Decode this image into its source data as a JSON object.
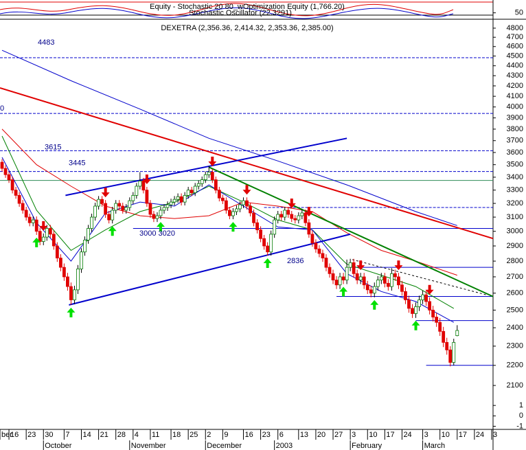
{
  "chart_data": {
    "type": "candlestick",
    "header": [
      "Equity - Stochastic 20 80_wOptimization Equity (1,766.20)",
      "Stochastic Oscillator (22.3291)",
      "DEXETRA (2,356.36, 2,414.32, 2,353.36, 2,385.00)"
    ],
    "log_scale": true,
    "up_color": "#007a00",
    "down_color": "#e00000",
    "xlim": [
      0.4,
      143.4
    ],
    "ylim": [
      2054,
      4900
    ],
    "yticks": [
      4800,
      4700,
      4600,
      4500,
      4400,
      4300,
      4200,
      4100,
      4000,
      3900,
      3800,
      3700,
      3600,
      3500,
      3400,
      3300,
      3200,
      3100,
      3000,
      2900,
      2800,
      2700,
      2600,
      2500,
      2400,
      2300,
      2200,
      2100
    ],
    "xticks": [
      {
        "value": 0.4,
        "label": "ber"
      },
      {
        "value": 3,
        "label": "16"
      },
      {
        "value": 8,
        "label": "23"
      },
      {
        "value": 13,
        "label": "30"
      },
      {
        "value": 19,
        "label": "7"
      },
      {
        "value": 24,
        "label": "14"
      },
      {
        "value": 29,
        "label": "21"
      },
      {
        "value": 34,
        "label": "28"
      },
      {
        "value": 39,
        "label": "4"
      },
      {
        "value": 44,
        "label": "11"
      },
      {
        "value": 50,
        "label": "18"
      },
      {
        "value": 55,
        "label": "25"
      },
      {
        "value": 60,
        "label": "2"
      },
      {
        "value": 65,
        "label": "9"
      },
      {
        "value": 71,
        "label": "16"
      },
      {
        "value": 76,
        "label": "23"
      },
      {
        "value": 81,
        "label": "6"
      },
      {
        "value": 87,
        "label": "13"
      },
      {
        "value": 92,
        "label": "20"
      },
      {
        "value": 97,
        "label": "27"
      },
      {
        "value": 102,
        "label": "3"
      },
      {
        "value": 107,
        "label": "10"
      },
      {
        "value": 112,
        "label": "17"
      },
      {
        "value": 117,
        "label": "24"
      },
      {
        "value": 123,
        "label": "3"
      },
      {
        "value": 128,
        "label": "10"
      },
      {
        "value": 133,
        "label": "17"
      },
      {
        "value": 138,
        "label": "24"
      },
      {
        "value": 143,
        "label": "3"
      }
    ],
    "month_ticks": [
      {
        "value": 13,
        "label": "October"
      },
      {
        "value": 38,
        "label": "November"
      },
      {
        "value": 60,
        "label": "December"
      },
      {
        "value": 80,
        "label": "2003"
      },
      {
        "value": 102,
        "label": "February"
      },
      {
        "value": 123,
        "label": "March"
      }
    ],
    "x": [
      1,
      2,
      3,
      4,
      5,
      6,
      7,
      8,
      9,
      10,
      11,
      12,
      13,
      14,
      15,
      16,
      17,
      18,
      19,
      20,
      21,
      22,
      23,
      24,
      25,
      26,
      27,
      28,
      29,
      30,
      31,
      32,
      33,
      34,
      35,
      36,
      37,
      38,
      39,
      40,
      41,
      42,
      43,
      44,
      45,
      46,
      47,
      48,
      49,
      50,
      51,
      52,
      53,
      54,
      55,
      56,
      57,
      58,
      59,
      60,
      61,
      62,
      63,
      64,
      65,
      66,
      67,
      68,
      69,
      70,
      71,
      72,
      73,
      74,
      75,
      76,
      77,
      78,
      79,
      80,
      81,
      82,
      83,
      84,
      85,
      86,
      87,
      88,
      89,
      90,
      91,
      92,
      93,
      94,
      95,
      96,
      97,
      98,
      99,
      100,
      101,
      102,
      103,
      104,
      105,
      106,
      107,
      108,
      109,
      110,
      111,
      112,
      113,
      114,
      115,
      116,
      117,
      118,
      119,
      120,
      121,
      122,
      123,
      124,
      125,
      126,
      127,
      128,
      129,
      130,
      131,
      132,
      133
    ],
    "ohlc": [
      [
        3520,
        3545,
        3445,
        3470
      ],
      [
        3470,
        3495,
        3395,
        3420
      ],
      [
        3420,
        3445,
        3355,
        3380
      ],
      [
        3380,
        3405,
        3275,
        3300
      ],
      [
        3300,
        3325,
        3235,
        3260
      ],
      [
        3260,
        3285,
        3175,
        3200
      ],
      [
        3200,
        3225,
        3125,
        3150
      ],
      [
        3150,
        3175,
        3075,
        3100
      ],
      [
        3100,
        3125,
        3035,
        3060
      ],
      [
        3060,
        3105,
        3035,
        3080
      ],
      [
        3080,
        3105,
        2975,
        3000
      ],
      [
        3000,
        3025,
        2905,
        2930
      ],
      [
        2930,
        2985,
        2905,
        2960
      ],
      [
        2960,
        3045,
        2935,
        3020
      ],
      [
        3020,
        3045,
        2955,
        2980
      ],
      [
        2980,
        3005,
        2875,
        2900
      ],
      [
        2900,
        2925,
        2795,
        2820
      ],
      [
        2820,
        2845,
        2735,
        2760
      ],
      [
        2760,
        2785,
        2675,
        2700
      ],
      [
        2700,
        2725,
        2615,
        2640
      ],
      [
        2640,
        2665,
        2530,
        2560
      ],
      [
        2560,
        2645,
        2535,
        2620
      ],
      [
        2620,
        2775,
        2595,
        2750
      ],
      [
        2750,
        2885,
        2725,
        2860
      ],
      [
        2860,
        2965,
        2835,
        2940
      ],
      [
        2940,
        3045,
        2915,
        3020
      ],
      [
        3020,
        3125,
        2995,
        3100
      ],
      [
        3100,
        3205,
        3075,
        3180
      ],
      [
        3180,
        3255,
        3155,
        3230
      ],
      [
        3230,
        3255,
        3175,
        3200
      ],
      [
        3200,
        3225,
        3095,
        3120
      ],
      [
        3120,
        3145,
        3055,
        3080
      ],
      [
        3080,
        3175,
        3055,
        3150
      ],
      [
        3150,
        3225,
        3125,
        3200
      ],
      [
        3200,
        3225,
        3155,
        3180
      ],
      [
        3180,
        3205,
        3125,
        3150
      ],
      [
        3150,
        3195,
        3125,
        3170
      ],
      [
        3170,
        3245,
        3145,
        3220
      ],
      [
        3220,
        3285,
        3195,
        3260
      ],
      [
        3260,
        3355,
        3235,
        3330
      ],
      [
        3330,
        3440,
        3305,
        3370
      ],
      [
        3370,
        3395,
        3275,
        3300
      ],
      [
        3300,
        3325,
        3175,
        3200
      ],
      [
        3200,
        3225,
        3095,
        3120
      ],
      [
        3120,
        3145,
        3065,
        3090
      ],
      [
        3090,
        3135,
        3065,
        3110
      ],
      [
        3110,
        3175,
        3085,
        3150
      ],
      [
        3150,
        3195,
        3125,
        3170
      ],
      [
        3170,
        3215,
        3145,
        3190
      ],
      [
        3190,
        3235,
        3165,
        3210
      ],
      [
        3210,
        3255,
        3185,
        3230
      ],
      [
        3230,
        3275,
        3205,
        3250
      ],
      [
        3250,
        3275,
        3185,
        3210
      ],
      [
        3210,
        3285,
        3185,
        3260
      ],
      [
        3260,
        3325,
        3235,
        3300
      ],
      [
        3300,
        3325,
        3255,
        3280
      ],
      [
        3280,
        3355,
        3255,
        3330
      ],
      [
        3330,
        3375,
        3305,
        3350
      ],
      [
        3350,
        3405,
        3325,
        3380
      ],
      [
        3380,
        3445,
        3355,
        3420
      ],
      [
        3420,
        3490,
        3395,
        3440
      ],
      [
        3440,
        3465,
        3355,
        3380
      ],
      [
        3380,
        3405,
        3275,
        3300
      ],
      [
        3300,
        3325,
        3215,
        3240
      ],
      [
        3240,
        3265,
        3195,
        3220
      ],
      [
        3220,
        3245,
        3125,
        3150
      ],
      [
        3150,
        3175,
        3085,
        3110
      ],
      [
        3110,
        3165,
        3085,
        3140
      ],
      [
        3140,
        3185,
        3115,
        3160
      ],
      [
        3160,
        3215,
        3135,
        3190
      ],
      [
        3190,
        3245,
        3165,
        3220
      ],
      [
        3220,
        3245,
        3155,
        3180
      ],
      [
        3180,
        3205,
        3105,
        3130
      ],
      [
        3130,
        3155,
        3035,
        3060
      ],
      [
        3060,
        3085,
        2985,
        3010
      ],
      [
        3010,
        3035,
        2925,
        2950
      ],
      [
        2950,
        2975,
        2875,
        2900
      ],
      [
        2900,
        2925,
        2836,
        2860
      ],
      [
        2860,
        3005,
        2836,
        2980
      ],
      [
        2980,
        3105,
        2955,
        3080
      ],
      [
        3080,
        3145,
        3055,
        3120
      ],
      [
        3120,
        3145,
        3075,
        3100
      ],
      [
        3100,
        3175,
        3075,
        3150
      ],
      [
        3150,
        3175,
        3095,
        3120
      ],
      [
        3120,
        3145,
        3065,
        3090
      ],
      [
        3090,
        3115,
        3055,
        3080
      ],
      [
        3080,
        3135,
        3055,
        3110
      ],
      [
        3110,
        3155,
        3085,
        3130
      ],
      [
        3130,
        3155,
        3035,
        3060
      ],
      [
        3060,
        3085,
        2955,
        2980
      ],
      [
        2980,
        3005,
        2895,
        2920
      ],
      [
        2920,
        2945,
        2855,
        2880
      ],
      [
        2880,
        2905,
        2825,
        2850
      ],
      [
        2850,
        2875,
        2795,
        2820
      ],
      [
        2820,
        2845,
        2735,
        2760
      ],
      [
        2760,
        2785,
        2695,
        2720
      ],
      [
        2720,
        2745,
        2655,
        2680
      ],
      [
        2680,
        2705,
        2625,
        2650
      ],
      [
        2650,
        2725,
        2625,
        2700
      ],
      [
        2700,
        2725,
        2655,
        2680
      ],
      [
        2680,
        2810,
        2655,
        2760
      ],
      [
        2760,
        2815,
        2735,
        2790
      ],
      [
        2790,
        2815,
        2695,
        2720
      ],
      [
        2720,
        2745,
        2655,
        2680
      ],
      [
        2680,
        2725,
        2655,
        2700
      ],
      [
        2700,
        2725,
        2625,
        2650
      ],
      [
        2650,
        2675,
        2595,
        2620
      ],
      [
        2620,
        2645,
        2575,
        2600
      ],
      [
        2600,
        2665,
        2575,
        2640
      ],
      [
        2640,
        2705,
        2615,
        2680
      ],
      [
        2680,
        2725,
        2655,
        2700
      ],
      [
        2700,
        2725,
        2635,
        2660
      ],
      [
        2660,
        2685,
        2615,
        2640
      ],
      [
        2640,
        2755,
        2615,
        2720
      ],
      [
        2720,
        2745,
        2675,
        2700
      ],
      [
        2700,
        2725,
        2625,
        2650
      ],
      [
        2650,
        2675,
        2585,
        2610
      ],
      [
        2610,
        2635,
        2535,
        2560
      ],
      [
        2560,
        2585,
        2485,
        2510
      ],
      [
        2510,
        2535,
        2455,
        2480
      ],
      [
        2480,
        2545,
        2455,
        2520
      ],
      [
        2520,
        2585,
        2495,
        2560
      ],
      [
        2560,
        2615,
        2535,
        2590
      ],
      [
        2590,
        2615,
        2525,
        2550
      ],
      [
        2550,
        2575,
        2475,
        2500
      ],
      [
        2500,
        2525,
        2435,
        2460
      ],
      [
        2460,
        2485,
        2405,
        2430
      ],
      [
        2430,
        2455,
        2355,
        2380
      ],
      [
        2380,
        2405,
        2295,
        2320
      ],
      [
        2320,
        2345,
        2255,
        2280
      ],
      [
        2280,
        2300,
        2195,
        2215
      ],
      [
        2215,
        2340,
        2200,
        2320
      ],
      [
        2356.36,
        2414.32,
        2353.36,
        2385
      ]
    ],
    "overlays": [
      {
        "color": "#0000cc",
        "x": [
          1,
          21,
          41,
          61,
          81,
          101,
          121,
          133
        ],
        "values": [
          4560,
          4250,
          3980,
          3720,
          3530,
          3340,
          3140,
          3040
        ]
      },
      {
        "color": "#e00000",
        "x": [
          1,
          11,
          21,
          31,
          41,
          51,
          61,
          71,
          81,
          91,
          101,
          111,
          121,
          133
        ],
        "values": [
          3800,
          3500,
          3330,
          3180,
          3110,
          3090,
          3110,
          3210,
          3180,
          3140,
          2990,
          2870,
          2800,
          2710
        ]
      },
      {
        "color": "#008000",
        "x": [
          1,
          11,
          21,
          31,
          41,
          51,
          61,
          71,
          81,
          91,
          101,
          111,
          121,
          132
        ],
        "values": [
          3740,
          3150,
          2870,
          3010,
          3140,
          3210,
          3330,
          3210,
          3080,
          3010,
          2780,
          2710,
          2640,
          2510
        ]
      },
      {
        "color": "#0000cc",
        "x": [
          1,
          11,
          21,
          31,
          41,
          51,
          61,
          71,
          81,
          91,
          101,
          111,
          121,
          132
        ],
        "values": [
          3560,
          3060,
          2800,
          3130,
          3210,
          3180,
          3340,
          3180,
          3030,
          3010,
          2720,
          2610,
          2550,
          2430
        ]
      }
    ],
    "trendlines": [
      {
        "color": "#e00000",
        "width": 2,
        "x": [
          0.4,
          143.4
        ],
        "values": [
          4180,
          2950
        ]
      },
      {
        "color": "#008000",
        "width": 2,
        "x": [
          61,
          143.4
        ],
        "values": [
          3480,
          2580
        ]
      },
      {
        "color": "#0000cc",
        "width": 2,
        "x": [
          19.4,
          101
        ],
        "values": [
          3260,
          3720
        ]
      },
      {
        "color": "#0000cc",
        "width": 2,
        "x": [
          20.4,
          102
        ],
        "values": [
          2530,
          2980
        ]
      },
      {
        "color": "#000000",
        "width": 1,
        "dash": true,
        "x": [
          102.6,
          141.4
        ],
        "values": [
          2810,
          2590
        ]
      }
    ],
    "levels": [
      4483,
      {
        "value": 3940,
        "label": "0"
      },
      3615,
      3445
    ],
    "level_color": "#0000cc",
    "lines": [
      {
        "value": 3375,
        "color": "#2e8b57",
        "from": 0.4
      },
      {
        "value": 3170,
        "color": "#0000cc",
        "from": 77,
        "dash": true
      },
      {
        "value": 3020,
        "color": "#0000cc",
        "from": 39
      },
      {
        "value": 2760,
        "color": "#0000cc",
        "from": 102
      },
      {
        "value": 2580,
        "color": "#0000cc",
        "from": 98
      },
      {
        "value": 2440,
        "color": "#0000cc",
        "from": 121
      },
      {
        "value": 2200,
        "color": "#0000cc",
        "from": 124
      }
    ],
    "annotations": [
      "3000 3020",
      "2836"
    ],
    "buy_signals": [
      11,
      21,
      33,
      47,
      68,
      78,
      100,
      109,
      121
    ],
    "sell_signals": [
      13,
      31,
      43,
      62,
      72,
      85,
      90,
      105,
      116,
      125
    ],
    "top_pane": {
      "ylim": [
        0,
        150
      ],
      "yticks": [
        50
      ]
    },
    "bottom_pane": {
      "ylim": [
        -1.3,
        2
      ],
      "yticks": [
        1,
        0,
        -1
      ]
    }
  }
}
